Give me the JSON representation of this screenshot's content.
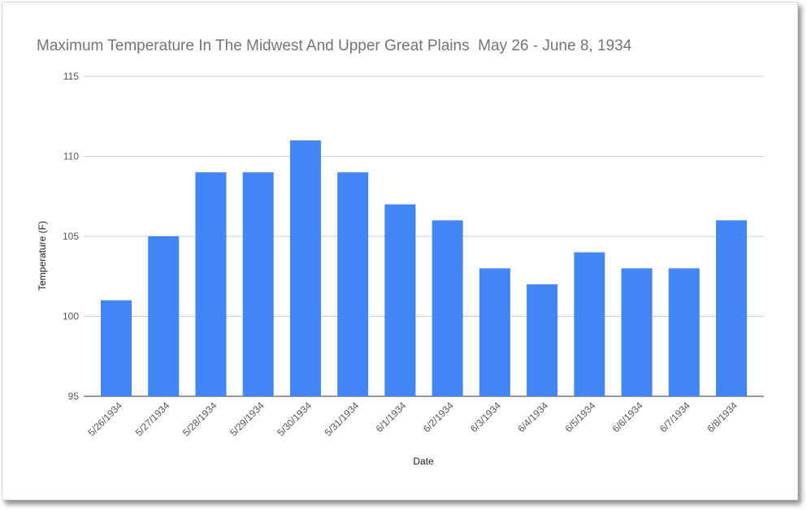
{
  "chart_data": {
    "type": "bar",
    "title": "Maximum Temperature In The Midwest And Upper Great Plains  May 26 - June 8, 1934",
    "xlabel": "Date",
    "ylabel": "Temperature (F)",
    "ylim": [
      95,
      115
    ],
    "yticks": [
      "95",
      "100",
      "105",
      "110",
      "115"
    ],
    "grid": true,
    "legend": "none",
    "bar_color": "#4285f4",
    "categories": [
      "5/26/1934",
      "5/27/1934",
      "5/28/1934",
      "5/29/1934",
      "5/30/1934",
      "5/31/1934",
      "6/1/1934",
      "6/2/1934",
      "6/3/1934",
      "6/4/1934",
      "6/5/1934",
      "6/6/1934",
      "6/7/1934",
      "6/8/1934"
    ],
    "values": [
      101,
      105,
      109,
      109,
      111,
      109,
      107,
      106,
      103,
      102,
      104,
      103,
      103,
      106
    ]
  }
}
